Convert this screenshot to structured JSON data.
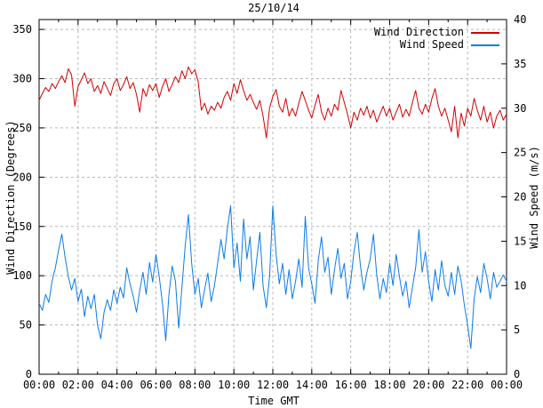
{
  "window": {
    "background": "#ffffff",
    "text_color": "#000000"
  },
  "chart_data": {
    "type": "line",
    "title": "25/10/14",
    "xlabel": "Time GMT",
    "grid": {
      "show": true,
      "color": "#b8b8b8",
      "style": "dashed"
    },
    "axis_color": "#000000",
    "legend": {
      "position": "top-right-inside",
      "entries": [
        "Wind Direction",
        "Wind Speed"
      ]
    },
    "x_axis": {
      "range_hours": [
        0,
        24
      ],
      "major_tick_every_hours": 2,
      "minor_tick_every_hours": 1,
      "tick_labels": [
        "00:00",
        "02:00",
        "04:00",
        "06:00",
        "08:00",
        "10:00",
        "12:00",
        "14:00",
        "16:00",
        "18:00",
        "20:00",
        "22:00",
        "00:00"
      ]
    },
    "y_axis_left": {
      "label": "Wind Direction (Degrees)",
      "range": [
        0,
        360
      ],
      "tick_step": 50,
      "tick_labels": [
        "0",
        "50",
        "100",
        "150",
        "200",
        "250",
        "300",
        "350"
      ]
    },
    "y_axis_right": {
      "label": "Wind Speed (m/s)",
      "range": [
        0,
        40
      ],
      "tick_step": 5,
      "tick_labels": [
        "0",
        "5",
        "10",
        "15",
        "20",
        "25",
        "30",
        "35",
        "40"
      ]
    },
    "sample_interval_minutes": 10,
    "series": [
      {
        "name": "Wind Direction",
        "axis": "left",
        "unit": "degrees",
        "color": "#d40000",
        "values": [
          278,
          285,
          291,
          287,
          295,
          290,
          297,
          303,
          296,
          310,
          304,
          272,
          292,
          299,
          306,
          295,
          300,
          287,
          293,
          285,
          297,
          290,
          283,
          295,
          300,
          288,
          294,
          302,
          290,
          296,
          284,
          266,
          290,
          282,
          294,
          288,
          295,
          281,
          292,
          300,
          287,
          294,
          302,
          296,
          308,
          300,
          312,
          305,
          309,
          297,
          268,
          275,
          264,
          272,
          268,
          276,
          270,
          281,
          287,
          278,
          295,
          285,
          299,
          288,
          278,
          284,
          276,
          269,
          278,
          262,
          240,
          270,
          282,
          289,
          272,
          266,
          280,
          262,
          270,
          262,
          275,
          287,
          278,
          268,
          260,
          273,
          284,
          266,
          258,
          270,
          262,
          274,
          268,
          288,
          276,
          264,
          250,
          266,
          258,
          270,
          263,
          272,
          260,
          268,
          256,
          264,
          272,
          262,
          270,
          258,
          266,
          274,
          261,
          269,
          262,
          276,
          288,
          270,
          264,
          274,
          266,
          280,
          290,
          272,
          262,
          270,
          258,
          246,
          272,
          240,
          265,
          252,
          270,
          262,
          280,
          268,
          258,
          272,
          256,
          266,
          250,
          262,
          268,
          258,
          264
        ]
      },
      {
        "name": "Wind Speed",
        "axis": "right",
        "unit": "m/s",
        "color": "#0b7ce6",
        "values": [
          8.0,
          7.2,
          9.0,
          8.1,
          10.5,
          12.0,
          14.0,
          15.8,
          13.2,
          11.0,
          9.5,
          10.8,
          8.2,
          9.6,
          6.5,
          8.8,
          7.4,
          9.0,
          5.5,
          4.0,
          7.0,
          8.4,
          7.2,
          9.5,
          8.0,
          9.8,
          8.6,
          12.0,
          10.2,
          8.8,
          7.0,
          9.4,
          11.5,
          9.0,
          12.6,
          10.4,
          13.5,
          11.0,
          8.0,
          3.8,
          9.0,
          12.2,
          10.5,
          5.2,
          9.8,
          14.5,
          18.0,
          12.5,
          9.0,
          10.8,
          7.5,
          9.6,
          11.4,
          8.2,
          10.0,
          12.5,
          15.2,
          13.0,
          16.5,
          19.0,
          12.0,
          14.8,
          10.5,
          17.5,
          13.0,
          15.5,
          9.5,
          12.8,
          16.0,
          10.0,
          7.5,
          11.0,
          19.0,
          13.5,
          10.2,
          12.5,
          9.0,
          11.8,
          8.5,
          10.5,
          13.0,
          9.8,
          17.8,
          12.0,
          10.2,
          8.0,
          12.8,
          15.5,
          11.5,
          13.2,
          9.0,
          11.8,
          14.2,
          10.8,
          12.5,
          8.5,
          10.5,
          13.8,
          16.0,
          12.2,
          9.5,
          11.5,
          13.0,
          15.8,
          11.2,
          8.5,
          10.8,
          9.2,
          12.5,
          10.0,
          13.5,
          11.0,
          8.8,
          10.5,
          7.5,
          9.8,
          12.0,
          16.3,
          11.5,
          13.8,
          10.5,
          8.2,
          11.8,
          9.5,
          12.8,
          10.0,
          8.8,
          11.5,
          9.0,
          12.2,
          10.5,
          7.8,
          5.5,
          2.9,
          8.5,
          11.0,
          9.2,
          12.5,
          10.8,
          8.5,
          11.5,
          9.8,
          10.5,
          11.2,
          10.5
        ]
      }
    ]
  }
}
